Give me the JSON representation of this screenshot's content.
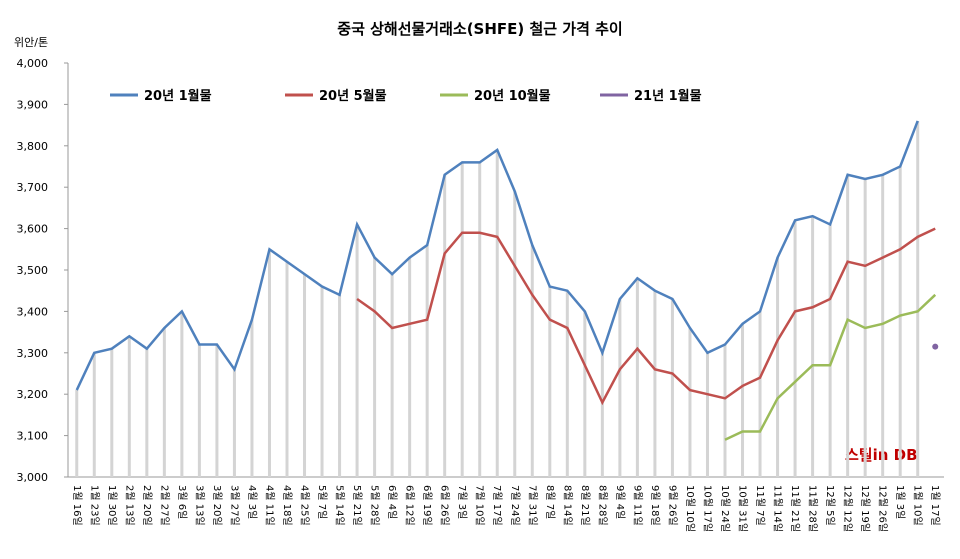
{
  "chart_data": {
    "type": "line",
    "title": "중국 상해선물거래소(SHFE) 철근 가격 추이",
    "y_label": "위안/톤",
    "watermark": "스틸in DB",
    "categories": [
      "1월 16일",
      "1월 23일",
      "1월 30일",
      "2월 13일",
      "2월 20일",
      "2월 27일",
      "3월 6일",
      "3월 13일",
      "3월 20일",
      "3월 27일",
      "4월 3일",
      "4월 11일",
      "4월 18일",
      "4월 25일",
      "5월 7일",
      "5월 14일",
      "5월 21일",
      "5월 28일",
      "6월 4일",
      "6월 12일",
      "6월 19일",
      "6월 26일",
      "7월 3일",
      "7월 10일",
      "7월 17일",
      "7월 24일",
      "7월 31일",
      "8월 7일",
      "8월 14일",
      "8월 21일",
      "8월 28일",
      "9월 4일",
      "9월 11일",
      "9월 18일",
      "9월 26일",
      "10월 10일",
      "10월 17일",
      "10월 24일",
      "10월 31일",
      "11월 7일",
      "11월 14일",
      "11월 21일",
      "11월 28일",
      "12월 5일",
      "12월 12일",
      "12월 19일",
      "12월 26일",
      "1월 3일",
      "1월 10일",
      "1월 17일"
    ],
    "series": [
      {
        "name": "20년 1월물",
        "color": "#4f81bd",
        "values": [
          3210,
          3300,
          3310,
          3340,
          3310,
          3360,
          3400,
          3320,
          3320,
          3260,
          3380,
          3550,
          3520,
          3490,
          3460,
          3440,
          3610,
          3530,
          3490,
          3530,
          3560,
          3730,
          3760,
          3760,
          3790,
          3690,
          3560,
          3460,
          3450,
          3400,
          3300,
          3430,
          3480,
          3450,
          3430,
          3360,
          3300,
          3320,
          3370,
          3400,
          3530,
          3620,
          3630,
          3610,
          3730,
          3720,
          3730,
          3750,
          3860,
          null
        ]
      },
      {
        "name": "20년 5월물",
        "color": "#c0504d",
        "values": [
          null,
          null,
          null,
          null,
          null,
          null,
          null,
          null,
          null,
          null,
          null,
          null,
          null,
          null,
          null,
          null,
          3430,
          3400,
          3360,
          3370,
          3380,
          3540,
          3590,
          3590,
          3580,
          3510,
          3440,
          3380,
          3360,
          3270,
          3180,
          3260,
          3310,
          3260,
          3250,
          3210,
          3200,
          3190,
          3220,
          3240,
          3330,
          3400,
          3410,
          3430,
          3520,
          3510,
          3530,
          3550,
          3580,
          3600
        ]
      },
      {
        "name": "20년 10월물",
        "color": "#9bbb59",
        "values": [
          null,
          null,
          null,
          null,
          null,
          null,
          null,
          null,
          null,
          null,
          null,
          null,
          null,
          null,
          null,
          null,
          null,
          null,
          null,
          null,
          null,
          null,
          null,
          null,
          null,
          null,
          null,
          null,
          null,
          null,
          null,
          null,
          null,
          null,
          null,
          null,
          null,
          3090,
          3110,
          3110,
          3190,
          3230,
          3270,
          3270,
          3380,
          3360,
          3370,
          3390,
          3400,
          3440
        ]
      },
      {
        "name": "21년 1월물",
        "color": "#8064a2",
        "values": [
          null,
          null,
          null,
          null,
          null,
          null,
          null,
          null,
          null,
          null,
          null,
          null,
          null,
          null,
          null,
          null,
          null,
          null,
          null,
          null,
          null,
          null,
          null,
          null,
          null,
          null,
          null,
          null,
          null,
          null,
          null,
          null,
          null,
          null,
          null,
          null,
          null,
          null,
          null,
          null,
          null,
          null,
          null,
          null,
          null,
          null,
          null,
          null,
          null,
          3315
        ]
      }
    ],
    "ylim": [
      3000,
      4000
    ],
    "yticks": [
      {
        "value": 3000,
        "label": "3,000"
      },
      {
        "value": 3100,
        "label": "3,100"
      },
      {
        "value": 3200,
        "label": "3,200"
      },
      {
        "value": 3300,
        "label": "3,300"
      },
      {
        "value": 3400,
        "label": "3,400"
      },
      {
        "value": 3500,
        "label": "3,500"
      },
      {
        "value": 3600,
        "label": "3,600"
      },
      {
        "value": 3700,
        "label": "3,700"
      },
      {
        "value": 3800,
        "label": "3,800"
      },
      {
        "value": 3900,
        "label": "3,900"
      },
      {
        "value": 4000,
        "label": "4,000"
      }
    ],
    "legend": "top"
  }
}
